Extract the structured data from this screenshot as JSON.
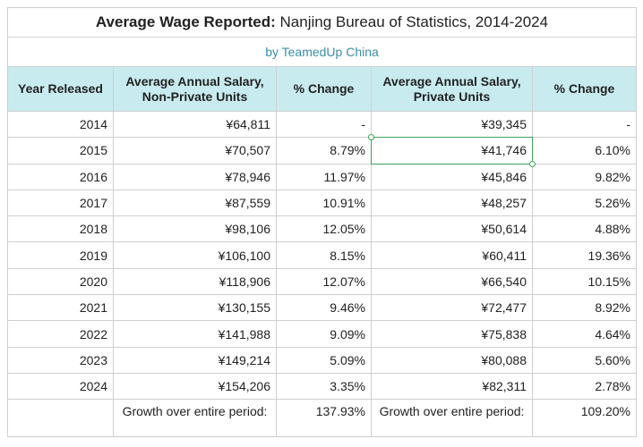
{
  "title_bold": "Average Wage Reported:",
  "title_rest": " Nanjing Bureau of Statistics, 2014-2024",
  "subtitle": "by TeamedUp China",
  "headers": [
    "Year Released",
    "Average Annual Salary, Non-Private Units",
    "% Change",
    "Average Annual Salary, Private Units",
    "% Change"
  ],
  "rows": [
    [
      "2014",
      "¥64,811",
      "-",
      "¥39,345",
      "-"
    ],
    [
      "2015",
      "¥70,507",
      "8.79%",
      "¥41,746",
      "6.10%"
    ],
    [
      "2016",
      "¥78,946",
      "11.97%",
      "¥45,846",
      "9.82%"
    ],
    [
      "2017",
      "¥87,559",
      "10.91%",
      "¥48,257",
      "5.26%"
    ],
    [
      "2018",
      "¥98,106",
      "12.05%",
      "¥50,614",
      "4.88%"
    ],
    [
      "2019",
      "¥106,100",
      "8.15%",
      "¥60,411",
      "19.36%"
    ],
    [
      "2020",
      "¥118,906",
      "12.07%",
      "¥66,540",
      "10.15%"
    ],
    [
      "2021",
      "¥130,155",
      "9.46%",
      "¥72,477",
      "8.92%"
    ],
    [
      "2022",
      "¥141,988",
      "9.09%",
      "¥75,838",
      "4.64%"
    ],
    [
      "2023",
      "¥149,214",
      "5.09%",
      "¥80,088",
      "5.60%"
    ],
    [
      "2024",
      "¥154,206",
      "3.35%",
      "¥82,311",
      "2.78%"
    ]
  ],
  "footer": {
    "label_non_private": "Growth over entire period:",
    "growth_non_private": "137.93%",
    "label_private": "Growth over entire period:",
    "growth_private": "109.20%"
  },
  "colors": {
    "header_bg": "#c8ebef",
    "subtitle_text": "#3a8fa8",
    "selection": "#3aa35b"
  }
}
